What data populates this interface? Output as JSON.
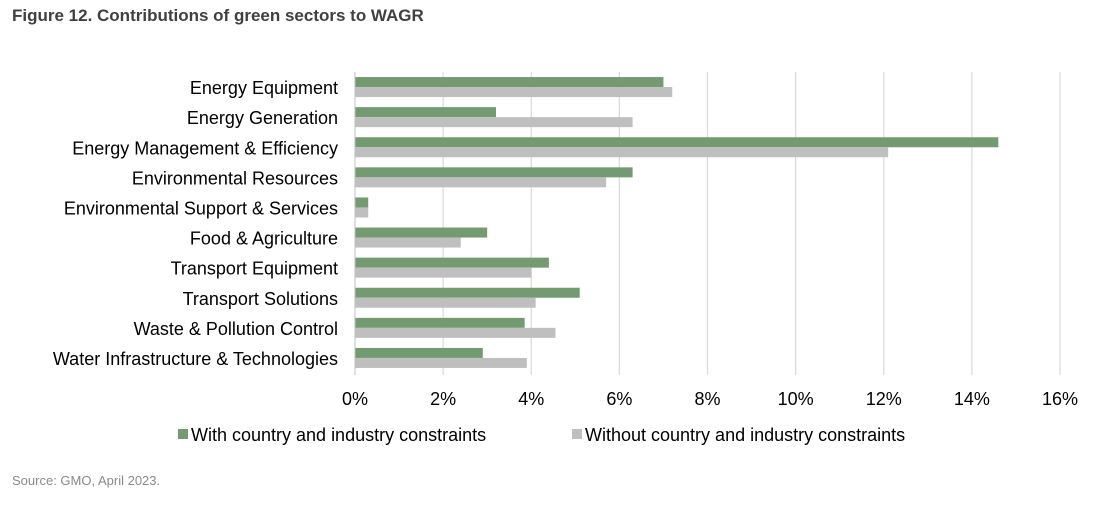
{
  "figure": {
    "title": "Figure 12. Contributions of green sectors to WAGR",
    "source": "Source: GMO, April 2023."
  },
  "chart_data": {
    "type": "bar",
    "orientation": "horizontal",
    "categories": [
      "Energy Equipment",
      "Energy Generation",
      "Energy Management & Efficiency",
      "Environmental Resources",
      "Environmental Support & Services",
      "Food & Agriculture",
      "Transport Equipment",
      "Transport Solutions",
      "Waste & Pollution Control",
      "Water Infrastructure & Technologies"
    ],
    "series": [
      {
        "name": "With country and industry constraints",
        "color": "#739a71",
        "values": [
          7.0,
          3.2,
          14.6,
          6.3,
          0.3,
          3.0,
          4.4,
          5.1,
          3.85,
          2.9
        ]
      },
      {
        "name": "Without country and industry constraints",
        "color": "#bfbfbf",
        "values": [
          7.2,
          6.3,
          12.1,
          5.7,
          0.3,
          2.4,
          4.0,
          4.1,
          4.55,
          3.9
        ]
      }
    ],
    "xlim": [
      0,
      16
    ],
    "xticks": [
      0,
      2,
      4,
      6,
      8,
      10,
      12,
      14,
      16
    ],
    "xtick_labels": [
      "0%",
      "2%",
      "4%",
      "6%",
      "8%",
      "10%",
      "12%",
      "14%",
      "16%"
    ],
    "grid": "vertical",
    "legend_position": "bottom"
  }
}
